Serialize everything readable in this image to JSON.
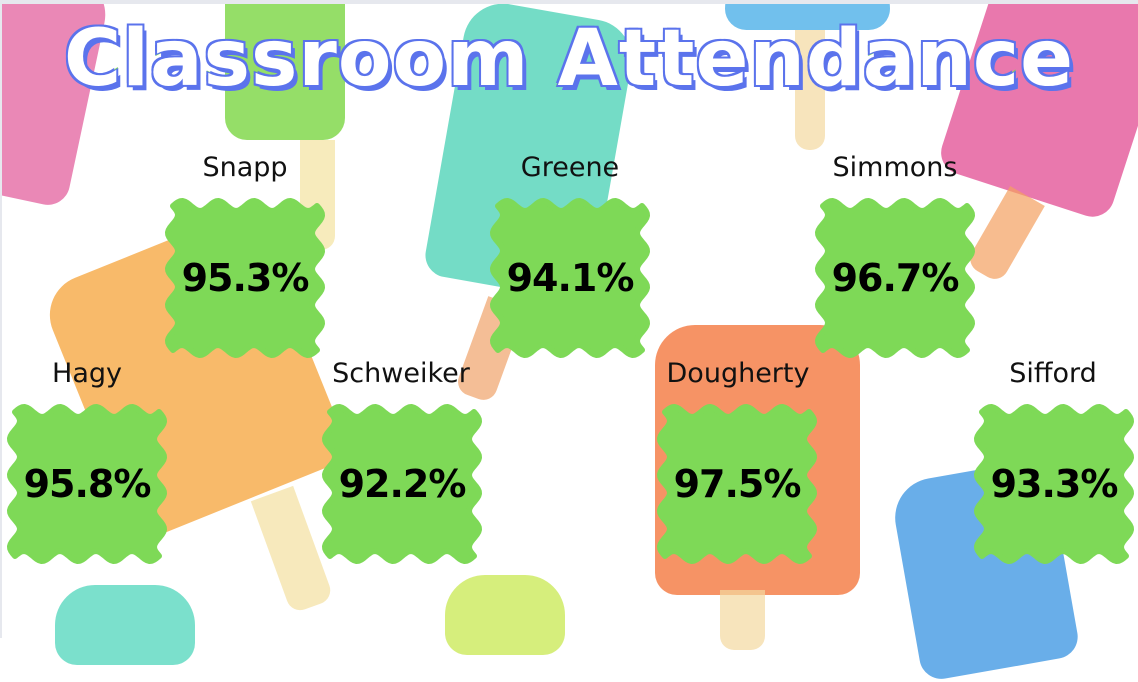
{
  "title": "Classroom Attendance",
  "colors": {
    "card": "#7ed957",
    "title_outline": "#7ed957",
    "title_shadow": "#5b73ec"
  },
  "classes": [
    {
      "teacher": "Snapp",
      "attendance": "95.3%"
    },
    {
      "teacher": "Greene",
      "attendance": "94.1%"
    },
    {
      "teacher": "Simmons",
      "attendance": "96.7%"
    },
    {
      "teacher": "Hagy",
      "attendance": "95.8%"
    },
    {
      "teacher": "Schweiker",
      "attendance": "92.2%"
    },
    {
      "teacher": "Dougherty",
      "attendance": "97.5%"
    },
    {
      "teacher": "Sifford",
      "attendance": "93.3%"
    }
  ]
}
